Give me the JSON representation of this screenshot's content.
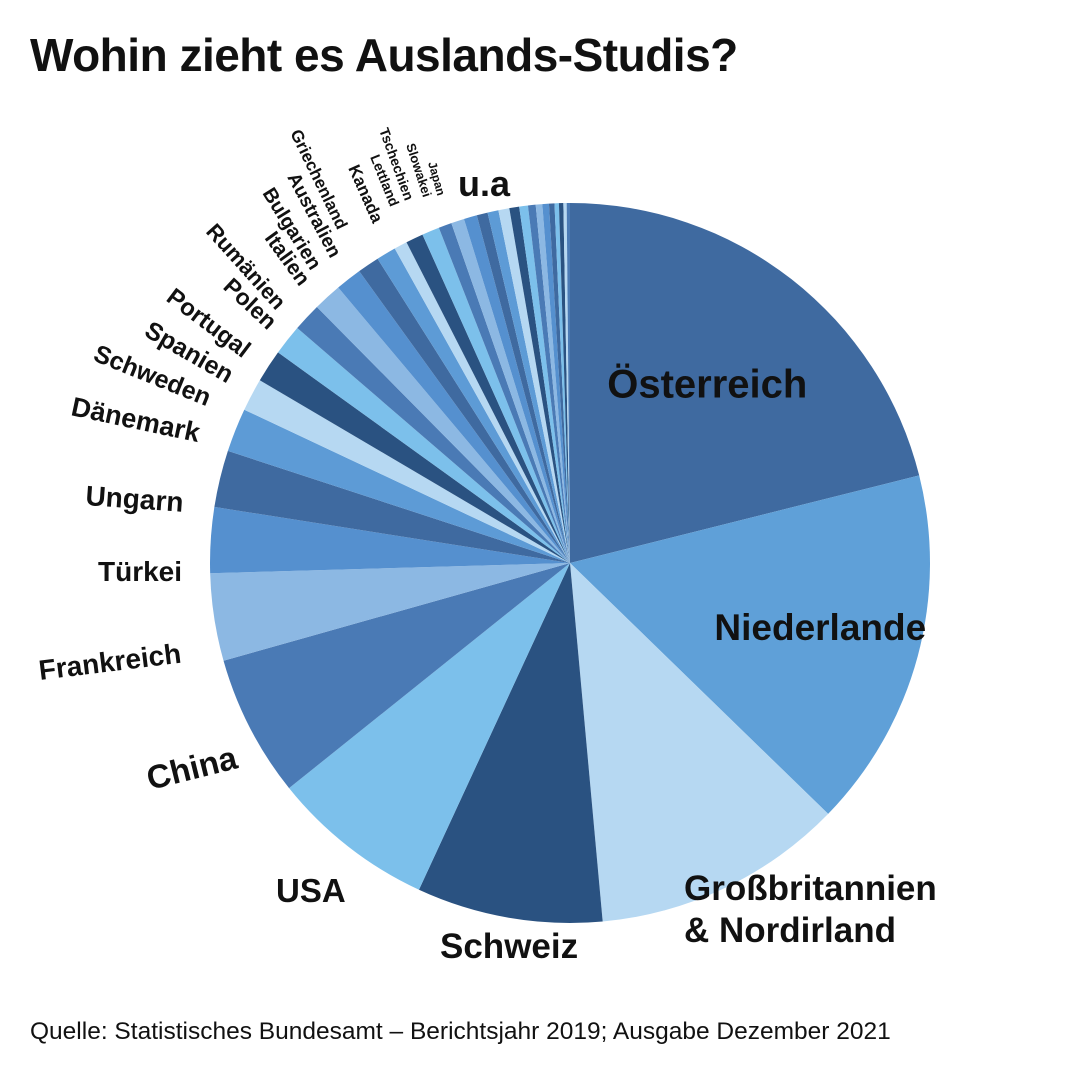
{
  "title": "Wohin zieht es Auslands-Studis?",
  "source": "Quelle: Statistisches Bundesamt – Berichtsjahr 2019; Ausgabe Dezember 2021",
  "chart_data": {
    "type": "pie",
    "title": "Wohin zieht es Auslands-Studis?",
    "start": "top, clockwise",
    "colors": {
      "navy": "#2a5281",
      "mid": "#3f6aa0",
      "steel": "#4a7ab5",
      "blue": "#5d9bd6",
      "sky": "#7cc0eb",
      "pale": "#b6d8f2",
      "lightmid": "#8cb8e3"
    },
    "slices": [
      {
        "label": "Österreich",
        "value": 21.5,
        "color": "#3f6aa0",
        "label_style": "inside"
      },
      {
        "label": "Niederlande",
        "value": 16.5,
        "color": "#5fa0d8",
        "label_style": "inside-dark"
      },
      {
        "label": "Großbritannien\n& Nordirland",
        "value": 11.5,
        "color": "#b6d8f2",
        "label_style": "outside-right"
      },
      {
        "label": "Schweiz",
        "value": 8.5,
        "color": "#2a5281",
        "label_style": "outside"
      },
      {
        "label": "USA",
        "value": 7.5,
        "color": "#7cc0eb",
        "label_style": "outside"
      },
      {
        "label": "China",
        "value": 6.5,
        "color": "#4a7ab5",
        "label_style": "outside"
      },
      {
        "label": "Frankreich",
        "value": 4.0,
        "color": "#8cb8e3",
        "label_style": "outside"
      },
      {
        "label": "Türkei",
        "value": 3.0,
        "color": "#5590cf",
        "label_style": "outside"
      },
      {
        "label": "Ungarn",
        "value": 2.6,
        "color": "#3f6aa0",
        "label_style": "outside"
      },
      {
        "label": "Dänemark",
        "value": 2.0,
        "color": "#5d9bd6",
        "label_style": "outside"
      },
      {
        "label": "Schweden",
        "value": 1.5,
        "color": "#b6d8f2",
        "label_style": "outside"
      },
      {
        "label": "Spanien",
        "value": 1.5,
        "color": "#2a5281",
        "label_style": "outside"
      },
      {
        "label": "Portugal",
        "value": 1.4,
        "color": "#7cc0eb",
        "label_style": "outside"
      },
      {
        "label": "Polen",
        "value": 1.3,
        "color": "#4a7ab5",
        "label_style": "outside"
      },
      {
        "label": "Rumänien",
        "value": 1.3,
        "color": "#8cb8e3",
        "label_style": "outside"
      },
      {
        "label": "Italien",
        "value": 1.2,
        "color": "#5590cf",
        "label_style": "outside"
      },
      {
        "label": "Bulgarien",
        "value": 1.0,
        "color": "#3f6aa0",
        "label_style": "outside"
      },
      {
        "label": "Australien",
        "value": 0.9,
        "color": "#5d9bd6",
        "label_style": "outside"
      },
      {
        "label": "Griechenland",
        "value": 0.6,
        "color": "#b6d8f2",
        "label_style": "outside"
      },
      {
        "label": "Kanada",
        "value": 0.8,
        "color": "#2a5281",
        "label_style": "outside"
      },
      {
        "label": "Lettland",
        "value": 0.8,
        "color": "#7cc0eb",
        "label_style": "outside"
      },
      {
        "label": "Tschechien",
        "value": 0.6,
        "color": "#4a7ab5",
        "label_style": "outside"
      },
      {
        "label": "Slowakei",
        "value": 0.6,
        "color": "#8cb8e3",
        "label_style": "outside"
      },
      {
        "label": "Japan",
        "value": 0.6,
        "color": "#5590cf",
        "label_style": "outside"
      },
      {
        "label": "",
        "value": 0.5,
        "color": "#3f6aa0",
        "label_style": "none"
      },
      {
        "label": "",
        "value": 0.5,
        "color": "#5d9bd6",
        "label_style": "none"
      },
      {
        "label": "",
        "value": 0.5,
        "color": "#b6d8f2",
        "label_style": "none"
      },
      {
        "label": "",
        "value": 0.45,
        "color": "#2a5281",
        "label_style": "none"
      },
      {
        "label": "",
        "value": 0.4,
        "color": "#7cc0eb",
        "label_style": "none"
      },
      {
        "label": "",
        "value": 0.35,
        "color": "#4a7ab5",
        "label_style": "none"
      },
      {
        "label": "",
        "value": 0.3,
        "color": "#8cb8e3",
        "label_style": "none"
      },
      {
        "label": "",
        "value": 0.3,
        "color": "#5590cf",
        "label_style": "none"
      },
      {
        "label": "",
        "value": 0.25,
        "color": "#3f6aa0",
        "label_style": "none"
      },
      {
        "label": "",
        "value": 0.2,
        "color": "#7cc0eb",
        "label_style": "none"
      },
      {
        "label": "",
        "value": 0.2,
        "color": "#2a5281",
        "label_style": "none"
      },
      {
        "label": "",
        "value": 0.15,
        "color": "#b6d8f2",
        "label_style": "none"
      },
      {
        "label": "",
        "value": 0.15,
        "color": "#4a7ab5",
        "label_style": "none"
      }
    ],
    "others_label": "u.a"
  }
}
